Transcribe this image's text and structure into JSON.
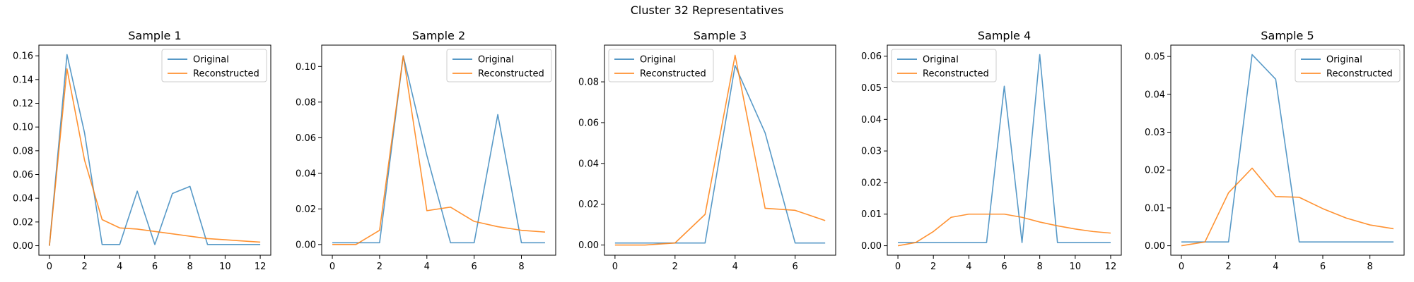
{
  "figure_title": "Cluster 32 Representatives",
  "colors": {
    "original": "#1f77b4",
    "reconstructed": "#ff7f0e"
  },
  "chart_data": [
    {
      "type": "line",
      "title": "Sample 1",
      "x": [
        0,
        1,
        2,
        3,
        4,
        5,
        6,
        7,
        8,
        9,
        10,
        11,
        12
      ],
      "xticks": [
        0,
        2,
        4,
        6,
        8,
        10,
        12
      ],
      "xlim": [
        -0.6,
        12.6
      ],
      "yticks": [
        0.0,
        0.02,
        0.04,
        0.06,
        0.08,
        0.1,
        0.12,
        0.14,
        0.16
      ],
      "ytick_labels": [
        "0.00",
        "0.02",
        "0.04",
        "0.06",
        "0.08",
        "0.10",
        "0.12",
        "0.14",
        "0.16"
      ],
      "ylim": [
        -0.008,
        0.169
      ],
      "legend": "top-right",
      "series": [
        {
          "name": "Original",
          "values": [
            0.0,
            0.161,
            0.095,
            0.001,
            0.001,
            0.046,
            0.001,
            0.044,
            0.05,
            0.001,
            0.001,
            0.001,
            0.001
          ]
        },
        {
          "name": "Reconstructed",
          "values": [
            0.0,
            0.149,
            0.072,
            0.022,
            0.015,
            0.014,
            0.012,
            0.01,
            0.008,
            0.006,
            0.005,
            0.004,
            0.003
          ]
        }
      ]
    },
    {
      "type": "line",
      "title": "Sample 2",
      "x": [
        0,
        1,
        2,
        3,
        4,
        5,
        6,
        7,
        8,
        9
      ],
      "xticks": [
        0,
        2,
        4,
        6,
        8
      ],
      "xlim": [
        -0.45,
        9.45
      ],
      "yticks": [
        0.0,
        0.02,
        0.04,
        0.06,
        0.08,
        0.1
      ],
      "ytick_labels": [
        "0.00",
        "0.02",
        "0.04",
        "0.06",
        "0.08",
        "0.10"
      ],
      "ylim": [
        -0.006,
        0.112
      ],
      "legend": "top-right",
      "series": [
        {
          "name": "Original",
          "values": [
            0.001,
            0.001,
            0.001,
            0.106,
            0.05,
            0.001,
            0.001,
            0.073,
            0.001,
            0.001
          ]
        },
        {
          "name": "Reconstructed",
          "values": [
            0.0,
            0.0,
            0.008,
            0.106,
            0.019,
            0.021,
            0.013,
            0.01,
            0.008,
            0.007
          ]
        }
      ]
    },
    {
      "type": "line",
      "title": "Sample 3",
      "x": [
        0,
        1,
        2,
        3,
        4,
        5,
        6,
        7
      ],
      "xticks": [
        0,
        2,
        4,
        6
      ],
      "xlim": [
        -0.35,
        7.35
      ],
      "yticks": [
        0.0,
        0.02,
        0.04,
        0.06,
        0.08
      ],
      "ytick_labels": [
        "0.00",
        "0.02",
        "0.04",
        "0.06",
        "0.08"
      ],
      "ylim": [
        -0.005,
        0.098
      ],
      "legend": "top-left",
      "series": [
        {
          "name": "Original",
          "values": [
            0.001,
            0.001,
            0.001,
            0.001,
            0.088,
            0.055,
            0.001,
            0.001
          ]
        },
        {
          "name": "Reconstructed",
          "values": [
            0.0,
            0.0,
            0.001,
            0.015,
            0.093,
            0.018,
            0.017,
            0.012
          ]
        }
      ]
    },
    {
      "type": "line",
      "title": "Sample 4",
      "x": [
        0,
        1,
        2,
        3,
        4,
        5,
        6,
        7,
        8,
        9,
        10,
        11,
        12
      ],
      "xticks": [
        0,
        2,
        4,
        6,
        8,
        10,
        12
      ],
      "xlim": [
        -0.6,
        12.6
      ],
      "yticks": [
        0.0,
        0.01,
        0.02,
        0.03,
        0.04,
        0.05,
        0.06
      ],
      "ytick_labels": [
        "0.00",
        "0.01",
        "0.02",
        "0.03",
        "0.04",
        "0.05",
        "0.06"
      ],
      "ylim": [
        -0.003,
        0.0635
      ],
      "legend": "top-left",
      "series": [
        {
          "name": "Original",
          "values": [
            0.001,
            0.001,
            0.001,
            0.001,
            0.001,
            0.001,
            0.0505,
            0.001,
            0.0605,
            0.001,
            0.001,
            0.001,
            0.001
          ]
        },
        {
          "name": "Reconstructed",
          "values": [
            0.0,
            0.001,
            0.0045,
            0.009,
            0.01,
            0.01,
            0.01,
            0.009,
            0.0075,
            0.0063,
            0.0053,
            0.0045,
            0.004
          ]
        }
      ]
    },
    {
      "type": "line",
      "title": "Sample 5",
      "x": [
        0,
        1,
        2,
        3,
        4,
        5,
        6,
        7,
        8,
        9
      ],
      "xticks": [
        0,
        2,
        4,
        6,
        8
      ],
      "xlim": [
        -0.45,
        9.45
      ],
      "yticks": [
        0.0,
        0.01,
        0.02,
        0.03,
        0.04,
        0.05
      ],
      "ytick_labels": [
        "0.00",
        "0.01",
        "0.02",
        "0.03",
        "0.04",
        "0.05"
      ],
      "ylim": [
        -0.0025,
        0.053
      ],
      "legend": "top-right",
      "series": [
        {
          "name": "Original",
          "values": [
            0.001,
            0.001,
            0.001,
            0.0505,
            0.044,
            0.001,
            0.001,
            0.001,
            0.001,
            0.001
          ]
        },
        {
          "name": "Reconstructed",
          "values": [
            0.0,
            0.001,
            0.014,
            0.0205,
            0.013,
            0.0128,
            0.0098,
            0.0073,
            0.0055,
            0.0045
          ]
        }
      ]
    }
  ]
}
